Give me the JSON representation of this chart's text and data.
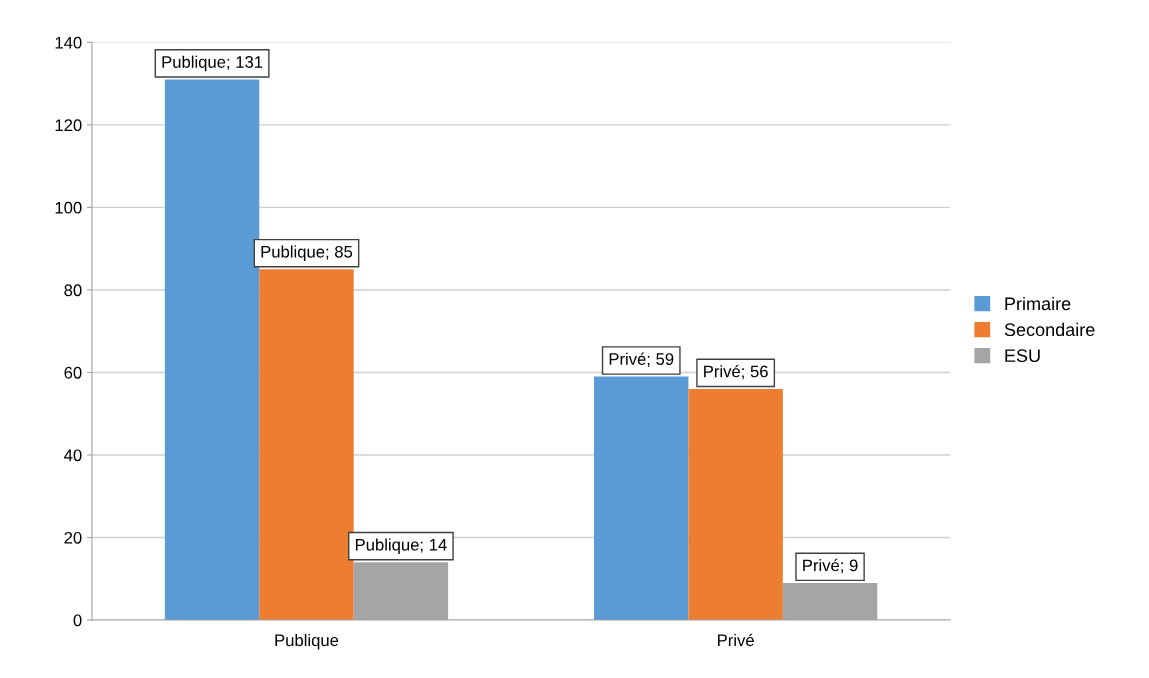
{
  "chart_data": {
    "type": "bar",
    "categories": [
      "Publique",
      "Privé"
    ],
    "series": [
      {
        "name": "Primaire",
        "color": "#5b9bd5",
        "values": [
          131,
          59
        ],
        "value_labels": [
          "Publique; 131",
          "Privé; 59"
        ]
      },
      {
        "name": "Secondaire",
        "color": "#ed7d31",
        "values": [
          85,
          56
        ],
        "value_labels": [
          "Publique; 85",
          "Privé; 56"
        ]
      },
      {
        "name": "ESU",
        "color": "#a5a5a5",
        "values": [
          14,
          9
        ],
        "value_labels": [
          "Publique; 14",
          "Privé; 9"
        ]
      }
    ],
    "ylim": [
      0,
      140
    ],
    "yticks": [
      0,
      20,
      40,
      60,
      80,
      100,
      120,
      140
    ],
    "grid": "y",
    "legend": "right"
  }
}
